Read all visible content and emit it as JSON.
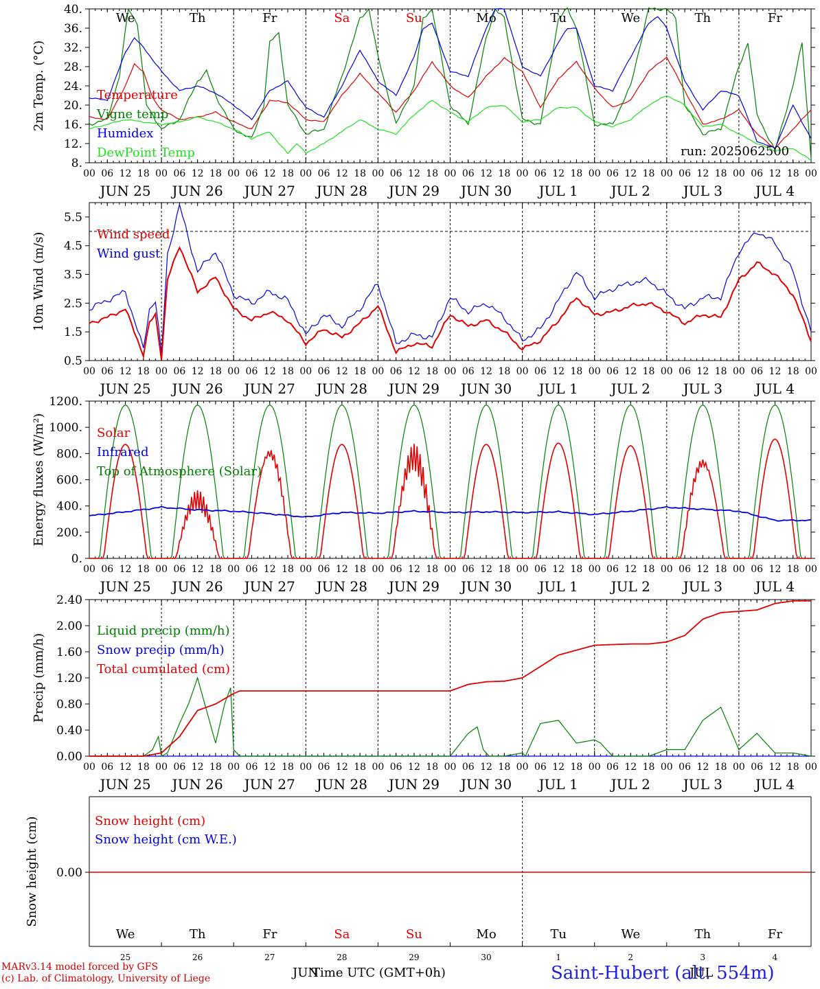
{
  "run_label": "run: 2025062500",
  "day_names": [
    "We",
    "Th",
    "Fr",
    "Sa",
    "Su",
    "Mo",
    "Tu",
    "We",
    "Th",
    "Fr"
  ],
  "day_name_colors": [
    "#000000",
    "#000000",
    "#000000",
    "#e00000",
    "#e00000",
    "#000000",
    "#000000",
    "#000000",
    "#000000",
    "#000000"
  ],
  "dates": [
    "JUN 25",
    "JUN 26",
    "JUN 27",
    "JUN 28",
    "JUN 29",
    "JUN 30",
    "JUL  1",
    "JUL  2",
    "JUL  3",
    "JUL  4"
  ],
  "hour_ticks": [
    "00",
    "06",
    "12",
    "18"
  ],
  "day_numbers": [
    "25",
    "26",
    "27",
    "28",
    "29",
    "30",
    "1",
    "2",
    "3",
    "4"
  ],
  "month_labels": [
    "JUN",
    "JUL"
  ],
  "xlabel": "Time UTC (GMT+0h)",
  "footer": {
    "line1": "MARv3.14 model forced by GFS",
    "line2": "(c) Lab. of Climatology, University of Liege"
  },
  "site": "Saint-Hubert (alt. 554m)",
  "colors": {
    "red": "#e00000",
    "green": "#008000",
    "blue": "#0000e0",
    "lightgreen": "#20e020"
  },
  "chart_data": [
    {
      "type": "line",
      "ylabel": "2m Temp. (°C)",
      "ylim": [
        8,
        40
      ],
      "yticks": [
        "8.",
        "12.",
        "16.",
        "20.",
        "24.",
        "28.",
        "32.",
        "36.",
        "40."
      ],
      "x_unit": "hours since JUN 25 00 UTC",
      "x_range": [
        0,
        240
      ],
      "series": [
        {
          "name": "Temperature",
          "color": "#e00000",
          "x": [
            0,
            6,
            12,
            15,
            18,
            21,
            24,
            30,
            36,
            42,
            48,
            54,
            60,
            66,
            72,
            78,
            84,
            90,
            96,
            102,
            108,
            114,
            120,
            126,
            132,
            138,
            144,
            150,
            156,
            162,
            168,
            174,
            180,
            186,
            192,
            198,
            204,
            210,
            216,
            222,
            228,
            234,
            240
          ],
          "y": [
            17.5,
            17,
            24,
            28.5,
            27,
            21.5,
            19,
            17,
            17.5,
            18.5,
            16.5,
            15,
            21,
            20.5,
            17,
            16.5,
            22,
            26.5,
            22.5,
            18.5,
            23,
            29,
            24,
            21.5,
            26,
            29.8,
            27,
            19.5,
            25.5,
            29,
            23.5,
            19.5,
            21,
            27,
            30,
            23,
            16,
            17,
            19,
            14,
            11,
            15,
            19
          ]
        },
        {
          "name": "Vigne temp",
          "color": "#008000",
          "x": [
            0,
            6,
            10,
            13,
            16,
            19,
            24,
            30,
            36,
            39,
            42,
            48,
            54,
            58,
            60,
            63,
            66,
            72,
            78,
            84,
            90,
            93,
            96,
            102,
            108,
            111,
            114,
            120,
            126,
            132,
            135,
            138,
            144,
            150,
            156,
            159,
            162,
            168,
            174,
            180,
            186,
            192,
            195,
            198,
            204,
            210,
            216,
            219,
            222,
            228,
            234,
            237,
            240
          ],
          "y": [
            16,
            17,
            26,
            40,
            37,
            20,
            15,
            17,
            25,
            27,
            22,
            15,
            13,
            20,
            33,
            35,
            20,
            14,
            15,
            26,
            38,
            40,
            30,
            16,
            24,
            38,
            40,
            20,
            16,
            34,
            40,
            38,
            17,
            16,
            38,
            40,
            36,
            16,
            16,
            24,
            40,
            40,
            38,
            20,
            14,
            15,
            28,
            33,
            18,
            10.5,
            24,
            33,
            9
          ]
        },
        {
          "name": "Humidex",
          "color": "#0000e0",
          "x": [
            0,
            6,
            12,
            15,
            18,
            24,
            30,
            36,
            42,
            48,
            54,
            60,
            66,
            72,
            78,
            84,
            90,
            96,
            102,
            108,
            111,
            114,
            120,
            126,
            132,
            135,
            138,
            144,
            150,
            156,
            159,
            162,
            168,
            174,
            180,
            186,
            189,
            192,
            198,
            204,
            210,
            216,
            222,
            228,
            234,
            240
          ],
          "y": [
            21.5,
            21,
            31,
            34,
            32,
            27,
            23,
            24,
            22.5,
            20,
            17,
            23,
            25,
            19.5,
            17.5,
            24,
            31.5,
            25,
            22,
            30,
            36,
            37,
            27,
            26,
            36,
            40,
            40,
            28,
            26,
            33,
            36,
            36,
            24,
            23,
            30,
            37,
            38.5,
            36,
            25,
            19,
            23,
            22,
            12.5,
            11,
            20,
            13
          ]
        },
        {
          "name": "DewPoint Temp",
          "color": "#20e020",
          "x": [
            0,
            6,
            12,
            18,
            24,
            30,
            36,
            42,
            48,
            54,
            60,
            63,
            66,
            69,
            72,
            78,
            84,
            90,
            96,
            102,
            108,
            111,
            114,
            120,
            126,
            132,
            138,
            144,
            150,
            156,
            162,
            168,
            174,
            180,
            186,
            192,
            198,
            204,
            210,
            216,
            222,
            228,
            234,
            240
          ],
          "y": [
            15,
            16,
            17,
            16.5,
            16,
            16.5,
            17.5,
            16.5,
            15,
            13,
            14.5,
            12,
            10,
            12,
            10,
            12,
            14.5,
            17,
            15,
            14,
            18,
            19.5,
            21,
            18.5,
            16.5,
            19.5,
            20,
            16.5,
            17,
            19.5,
            19.5,
            16.5,
            15.5,
            17,
            20,
            22,
            20,
            15.5,
            16,
            14,
            12,
            10.5,
            11,
            8.5
          ]
        }
      ],
      "annotations": [
        "run: 2025062500"
      ]
    },
    {
      "type": "line",
      "ylabel": "10m Wind (m/s)",
      "ylim": [
        0.5,
        6.0
      ],
      "yticks": [
        "0.5",
        "1.5",
        "2.5",
        "3.5",
        "4.5",
        "5.5"
      ],
      "reference_line": 5.0,
      "series": [
        {
          "name": "Wind speed",
          "color": "#e00000",
          "x": [
            0,
            6,
            12,
            18,
            20,
            22,
            24,
            26,
            30,
            36,
            42,
            48,
            54,
            60,
            66,
            72,
            78,
            84,
            90,
            96,
            102,
            108,
            114,
            120,
            126,
            132,
            138,
            144,
            150,
            156,
            162,
            168,
            174,
            180,
            186,
            192,
            198,
            204,
            210,
            216,
            222,
            228,
            234,
            240
          ],
          "y": [
            1.8,
            2.0,
            2.3,
            0.7,
            1.8,
            2.1,
            0.6,
            3.3,
            4.5,
            2.9,
            3.4,
            2.3,
            1.9,
            2.2,
            1.9,
            1.1,
            1.6,
            1.3,
            1.8,
            2.4,
            0.8,
            1.1,
            1.0,
            2.1,
            1.7,
            1.9,
            1.5,
            0.9,
            1.2,
            1.9,
            2.7,
            2.1,
            2.2,
            2.4,
            2.5,
            2.2,
            1.8,
            2.1,
            2.0,
            3.3,
            3.9,
            3.5,
            2.8,
            1.2
          ]
        },
        {
          "name": "Wind gust",
          "color": "#0000e0",
          "x": [
            0,
            6,
            12,
            18,
            20,
            22,
            24,
            26,
            30,
            36,
            42,
            48,
            54,
            60,
            66,
            72,
            78,
            84,
            90,
            96,
            102,
            108,
            114,
            120,
            126,
            132,
            138,
            144,
            150,
            156,
            162,
            168,
            174,
            180,
            186,
            192,
            198,
            204,
            210,
            216,
            222,
            228,
            234,
            240
          ],
          "y": [
            2.3,
            2.6,
            2.9,
            0.9,
            2.3,
            2.6,
            0.7,
            4.2,
            5.9,
            3.6,
            4.3,
            2.8,
            2.5,
            2.9,
            2.6,
            1.4,
            2.1,
            1.7,
            2.3,
            3.2,
            1.1,
            1.4,
            1.3,
            2.7,
            2.2,
            2.5,
            2.0,
            1.2,
            1.6,
            2.6,
            3.6,
            2.7,
            3.0,
            3.2,
            3.3,
            2.8,
            2.3,
            2.7,
            2.7,
            4.3,
            5.0,
            4.6,
            3.6,
            1.5
          ]
        }
      ]
    },
    {
      "type": "line",
      "ylabel": "Energy fluxes (W/m²)",
      "ylim": [
        0,
        1200
      ],
      "yticks": [
        "0.",
        "200.",
        "400.",
        "600.",
        "800.",
        "1000.",
        "1200."
      ],
      "series": [
        {
          "name": "Solar",
          "color": "#e00000",
          "daily_peaks": [
            870,
            520,
            880,
            870,
            880,
            870,
            880,
            860,
            800,
            910
          ]
        },
        {
          "name": "Infrared",
          "color": "#0000e0",
          "x": [
            0,
            12,
            24,
            36,
            48,
            60,
            72,
            84,
            96,
            108,
            120,
            132,
            144,
            156,
            168,
            180,
            192,
            204,
            216,
            228,
            240
          ],
          "y": [
            325,
            355,
            390,
            370,
            360,
            340,
            315,
            350,
            345,
            360,
            350,
            355,
            350,
            355,
            335,
            360,
            390,
            375,
            360,
            290,
            290
          ]
        },
        {
          "name": "Top of Atmosphere (Solar)",
          "color": "#008000",
          "daily_peaks": [
            1170,
            1170,
            1170,
            1170,
            1170,
            1170,
            1170,
            1170,
            1170,
            1170
          ]
        }
      ]
    },
    {
      "type": "line",
      "ylabel": "Precip (mm/h)",
      "ylim": [
        0,
        2.4
      ],
      "yticks": [
        "0.00",
        "0.40",
        "0.80",
        "1.20",
        "1.60",
        "2.00",
        "2.40"
      ],
      "series": [
        {
          "name": "Liquid precip (mm/h)",
          "color": "#008000",
          "x": [
            0,
            18,
            21,
            23,
            24,
            26,
            30,
            33,
            36,
            39,
            42,
            45,
            47,
            48,
            50,
            54,
            60,
            66,
            72,
            84,
            96,
            108,
            120,
            126,
            129,
            131,
            133,
            138,
            144,
            145,
            150,
            156,
            162,
            168,
            170,
            174,
            180,
            186,
            192,
            198,
            204,
            210,
            216,
            222,
            228,
            234,
            240
          ],
          "y": [
            0,
            0,
            0.1,
            0.3,
            0,
            0.05,
            0.5,
            0.8,
            1.2,
            0.7,
            0.2,
            0.8,
            1.05,
            0.1,
            0,
            0,
            0,
            0,
            0,
            0,
            0,
            0,
            0,
            0.35,
            0.45,
            0.1,
            0,
            0,
            0.05,
            0,
            0.5,
            0.55,
            0.2,
            0.25,
            0.2,
            0,
            0,
            0,
            0.1,
            0.1,
            0.55,
            0.75,
            0.1,
            0.35,
            0.05,
            0.05,
            0
          ]
        },
        {
          "name": "Snow precip (mm/h)",
          "color": "#0000e0",
          "x": [
            0,
            240
          ],
          "y": [
            0,
            0
          ]
        },
        {
          "name": "Total cumulated (cm)",
          "color": "#e00000",
          "x": [
            0,
            18,
            24,
            30,
            33,
            36,
            42,
            48,
            50,
            54,
            120,
            126,
            132,
            138,
            144,
            156,
            168,
            180,
            186,
            192,
            198,
            204,
            210,
            216,
            222,
            228,
            234,
            240
          ],
          "y": [
            0,
            0,
            0.05,
            0.3,
            0.5,
            0.7,
            0.8,
            0.96,
            1.0,
            1.0,
            1.0,
            1.1,
            1.14,
            1.15,
            1.2,
            1.55,
            1.7,
            1.72,
            1.72,
            1.75,
            1.85,
            2.1,
            2.2,
            2.22,
            2.24,
            2.34,
            2.38,
            2.38
          ]
        }
      ]
    },
    {
      "type": "line",
      "ylabel": "Snow height (cm)",
      "yticks": [
        "0.00"
      ],
      "series": [
        {
          "name": "Snow height (cm)",
          "color": "#e00000",
          "x": [
            0,
            240
          ],
          "y": [
            0,
            0
          ]
        },
        {
          "name": "Snow height (cm W.E.)",
          "color": "#0000e0",
          "x": [
            0,
            240
          ],
          "y": [
            0,
            0
          ]
        }
      ]
    }
  ]
}
